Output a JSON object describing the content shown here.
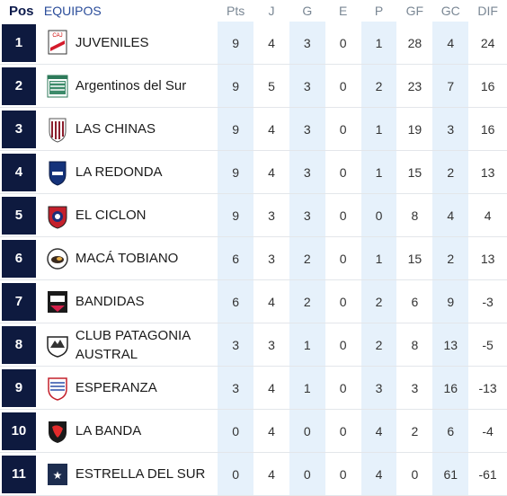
{
  "headers": {
    "pos": "Pos",
    "team": "EQUIPOS",
    "pts": "Pts",
    "j": "J",
    "g": "G",
    "e": "E",
    "p": "P",
    "gf": "GF",
    "gc": "GC",
    "dif": "DIF"
  },
  "rows": [
    {
      "pos": "1",
      "team": "JUVENILES",
      "crest": "juveniles-crest-icon",
      "pts": "9",
      "j": "4",
      "g": "3",
      "e": "0",
      "p": "1",
      "gf": "28",
      "gc": "4",
      "dif": "24"
    },
    {
      "pos": "2",
      "team": "Argentinos del Sur",
      "crest": "argentinos-crest-icon",
      "pts": "9",
      "j": "5",
      "g": "3",
      "e": "0",
      "p": "2",
      "gf": "23",
      "gc": "7",
      "dif": "16"
    },
    {
      "pos": "3",
      "team": "LAS CHINAS",
      "crest": "las-chinas-crest-icon",
      "pts": "9",
      "j": "4",
      "g": "3",
      "e": "0",
      "p": "1",
      "gf": "19",
      "gc": "3",
      "dif": "16"
    },
    {
      "pos": "4",
      "team": "LA REDONDA",
      "crest": "la-redonda-crest-icon",
      "pts": "9",
      "j": "4",
      "g": "3",
      "e": "0",
      "p": "1",
      "gf": "15",
      "gc": "2",
      "dif": "13"
    },
    {
      "pos": "5",
      "team": "EL CICLON",
      "crest": "el-ciclon-crest-icon",
      "pts": "9",
      "j": "3",
      "g": "3",
      "e": "0",
      "p": "0",
      "gf": "8",
      "gc": "4",
      "dif": "4"
    },
    {
      "pos": "6",
      "team": "MACÁ TOBIANO",
      "crest": "maca-tobiano-crest-icon",
      "pts": "6",
      "j": "3",
      "g": "2",
      "e": "0",
      "p": "1",
      "gf": "15",
      "gc": "2",
      "dif": "13"
    },
    {
      "pos": "7",
      "team": "BANDIDAS",
      "crest": "bandidas-crest-icon",
      "pts": "6",
      "j": "4",
      "g": "2",
      "e": "0",
      "p": "2",
      "gf": "6",
      "gc": "9",
      "dif": "-3"
    },
    {
      "pos": "8",
      "team": "CLUB PATAGONIA AUSTRAL",
      "crest": "patagonia-austral-crest-icon",
      "pts": "3",
      "j": "3",
      "g": "1",
      "e": "0",
      "p": "2",
      "gf": "8",
      "gc": "13",
      "dif": "-5"
    },
    {
      "pos": "9",
      "team": "ESPERANZA",
      "crest": "esperanza-crest-icon",
      "pts": "3",
      "j": "4",
      "g": "1",
      "e": "0",
      "p": "3",
      "gf": "3",
      "gc": "16",
      "dif": "-13"
    },
    {
      "pos": "10",
      "team": "LA BANDA",
      "crest": "la-banda-crest-icon",
      "pts": "0",
      "j": "4",
      "g": "0",
      "e": "0",
      "p": "4",
      "gf": "2",
      "gc": "6",
      "dif": "-4"
    },
    {
      "pos": "11",
      "team": "ESTRELLA DEL SUR",
      "crest": "estrella-del-sur-crest-icon",
      "pts": "0",
      "j": "4",
      "g": "0",
      "e": "0",
      "p": "4",
      "gf": "0",
      "gc": "61",
      "dif": "-61"
    }
  ]
}
